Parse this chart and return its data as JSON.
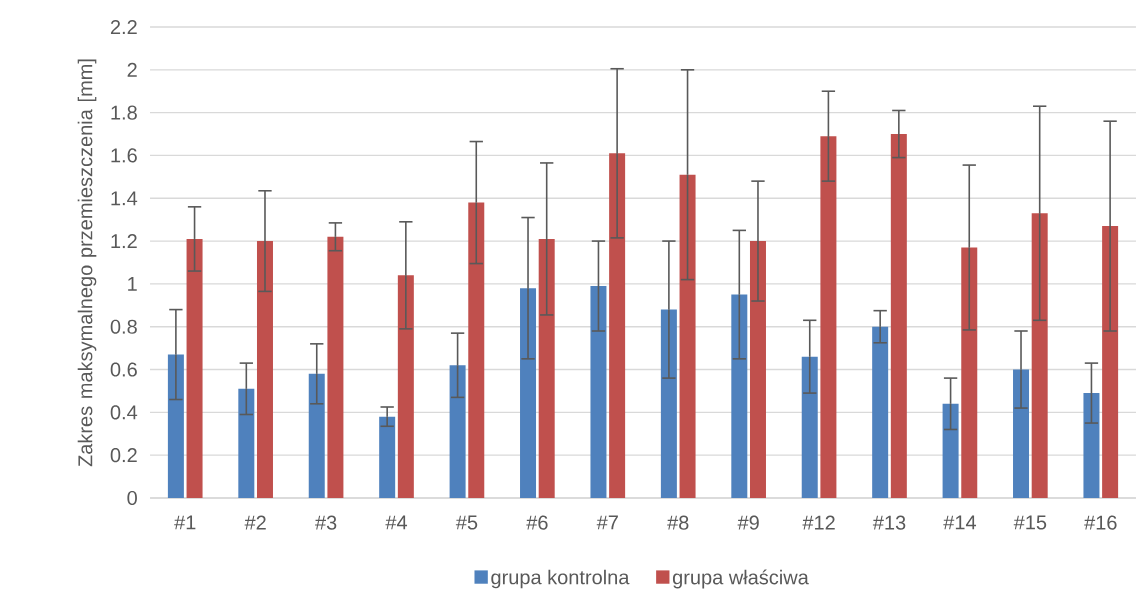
{
  "chart_data": {
    "type": "bar",
    "ylabel": "Zakres maksymalnego przemieszczenia [mm]",
    "categories": [
      "#1",
      "#2",
      "#3",
      "#4",
      "#5",
      "#6",
      "#7",
      "#8",
      "#9",
      "#12",
      "#13",
      "#14",
      "#15",
      "#16"
    ],
    "series": [
      {
        "name": "grupa kontrolna",
        "color": "#4f81bd",
        "values": [
          0.67,
          0.51,
          0.58,
          0.38,
          0.62,
          0.98,
          0.99,
          0.88,
          0.95,
          0.66,
          0.8,
          0.44,
          0.6,
          0.49
        ],
        "errors": [
          0.21,
          0.12,
          0.14,
          0.045,
          0.15,
          0.33,
          0.21,
          0.32,
          0.3,
          0.17,
          0.075,
          0.12,
          0.18,
          0.14
        ]
      },
      {
        "name": "grupa właściwa",
        "color": "#c0504d",
        "values": [
          1.21,
          1.2,
          1.22,
          1.04,
          1.38,
          1.21,
          1.61,
          1.51,
          1.2,
          1.69,
          1.7,
          1.17,
          1.33,
          1.27
        ],
        "errors": [
          0.15,
          0.235,
          0.065,
          0.25,
          0.285,
          0.355,
          0.395,
          0.49,
          0.28,
          0.21,
          0.11,
          0.385,
          0.5,
          0.49
        ]
      }
    ],
    "ylim": [
      0,
      2.2
    ],
    "yticks": [
      0,
      0.2,
      0.4,
      0.6,
      0.8,
      1,
      1.2,
      1.4,
      1.6,
      1.8,
      2,
      2.2
    ],
    "grid": "y",
    "legend": "bottom"
  }
}
